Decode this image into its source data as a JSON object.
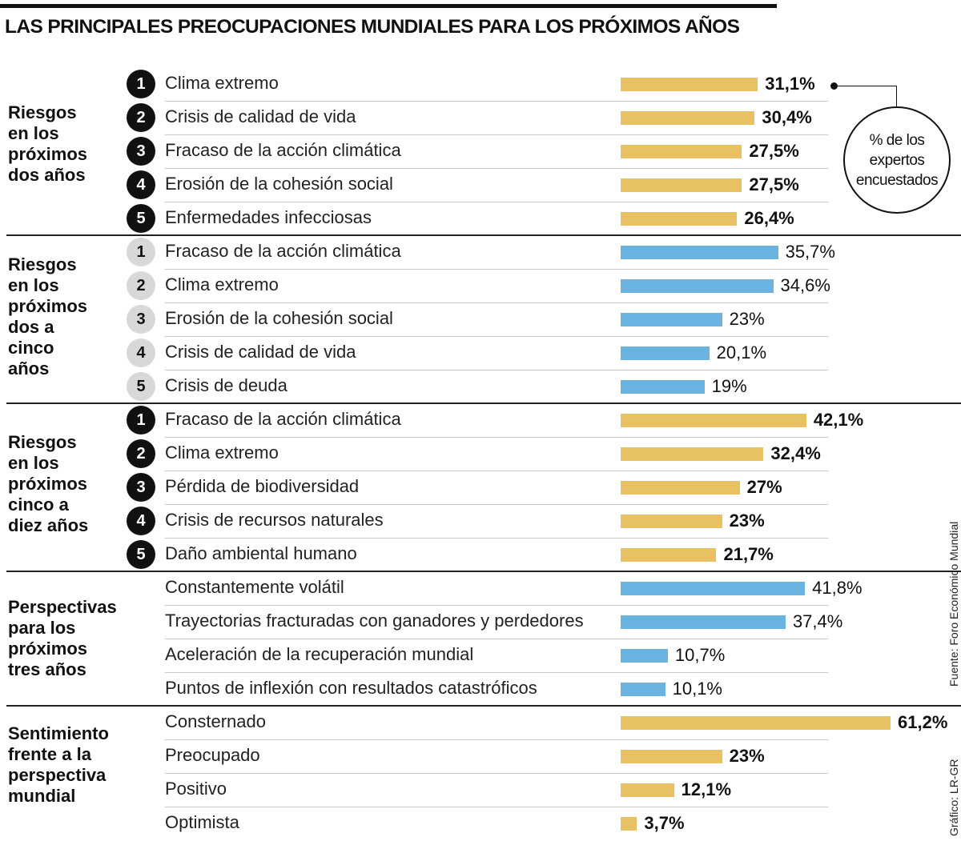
{
  "title": "LAS PRINCIPALES PREOCUPACIONES MUNDIALES PARA LOS PRÓXIMOS AÑOS",
  "callout": "% de los\nexpertos\nencuestados",
  "source": "Fuente: Foro Económico Mundial",
  "credit": "Gráfico: LR-GR",
  "colors": {
    "gold": "#e8c262",
    "blue": "#6ab4e2"
  },
  "chart_data": {
    "type": "bar",
    "orientation": "horizontal",
    "unit": "%",
    "sections": [
      {
        "label": "Riesgos\nen los\npróximos\ndos años",
        "color": "gold",
        "numbered": true,
        "number_style": "dark",
        "items": [
          {
            "rank": "1",
            "label": "Clima extremo",
            "value": 31.1,
            "text": "31,1%"
          },
          {
            "rank": "2",
            "label": "Crisis de calidad de vida",
            "value": 30.4,
            "text": "30,4%"
          },
          {
            "rank": "3",
            "label": "Fracaso de la acción climática",
            "value": 27.5,
            "text": "27,5%"
          },
          {
            "rank": "4",
            "label": "Erosión de la cohesión social",
            "value": 27.5,
            "text": "27,5%"
          },
          {
            "rank": "5",
            "label": "Enfermedades infecciosas",
            "value": 26.4,
            "text": "26,4%"
          }
        ]
      },
      {
        "label": "Riesgos\nen los\npróximos\ndos a\ncinco\naños",
        "color": "blue",
        "numbered": true,
        "number_style": "light",
        "items": [
          {
            "rank": "1",
            "label": "Fracaso de la acción climática",
            "value": 35.7,
            "text": "35,7%"
          },
          {
            "rank": "2",
            "label": "Clima extremo",
            "value": 34.6,
            "text": "34,6%"
          },
          {
            "rank": "3",
            "label": "Erosión de la cohesión social",
            "value": 23,
            "text": "23%"
          },
          {
            "rank": "4",
            "label": "Crisis de calidad de vida",
            "value": 20.1,
            "text": "20,1%"
          },
          {
            "rank": "5",
            "label": "Crisis de deuda",
            "value": 19,
            "text": "19%"
          }
        ]
      },
      {
        "label": "Riesgos\nen los\npróximos\ncinco  a\ndiez años",
        "color": "gold",
        "numbered": true,
        "number_style": "dark",
        "items": [
          {
            "rank": "1",
            "label": "Fracaso de la acción climática",
            "value": 42.1,
            "text": "42,1%"
          },
          {
            "rank": "2",
            "label": "Clima extremo",
            "value": 32.4,
            "text": "32,4%"
          },
          {
            "rank": "3",
            "label": "Pérdida de biodiversidad",
            "value": 27,
            "text": "27%"
          },
          {
            "rank": "4",
            "label": "Crisis de recursos naturales",
            "value": 23,
            "text": "23%"
          },
          {
            "rank": "5",
            "label": "Daño ambiental humano",
            "value": 21.7,
            "text": "21,7%"
          }
        ]
      },
      {
        "label": "Perspectivas\npara los\npróximos\ntres años",
        "color": "blue",
        "numbered": false,
        "items": [
          {
            "label": "Constantemente volátil",
            "value": 41.8,
            "text": "41,8%"
          },
          {
            "label": "Trayectorias fracturadas con ganadores y perdedores",
            "value": 37.4,
            "text": "37,4%"
          },
          {
            "label": "Aceleración de la recuperación mundial",
            "value": 10.7,
            "text": "10,7%"
          },
          {
            "label": "Puntos de inflexión  con resultados catastróficos",
            "value": 10.1,
            "text": "10,1%"
          }
        ]
      },
      {
        "label": "Sentimiento\nfrente a la\nperspectiva\nmundial",
        "color": "gold",
        "numbered": false,
        "items": [
          {
            "label": "Consternado",
            "value": 61.2,
            "text": "61,2%"
          },
          {
            "label": "Preocupado",
            "value": 23,
            "text": "23%"
          },
          {
            "label": "Positivo",
            "value": 12.1,
            "text": "12,1%"
          },
          {
            "label": "Optimista",
            "value": 3.7,
            "text": "3,7%"
          }
        ]
      }
    ]
  }
}
